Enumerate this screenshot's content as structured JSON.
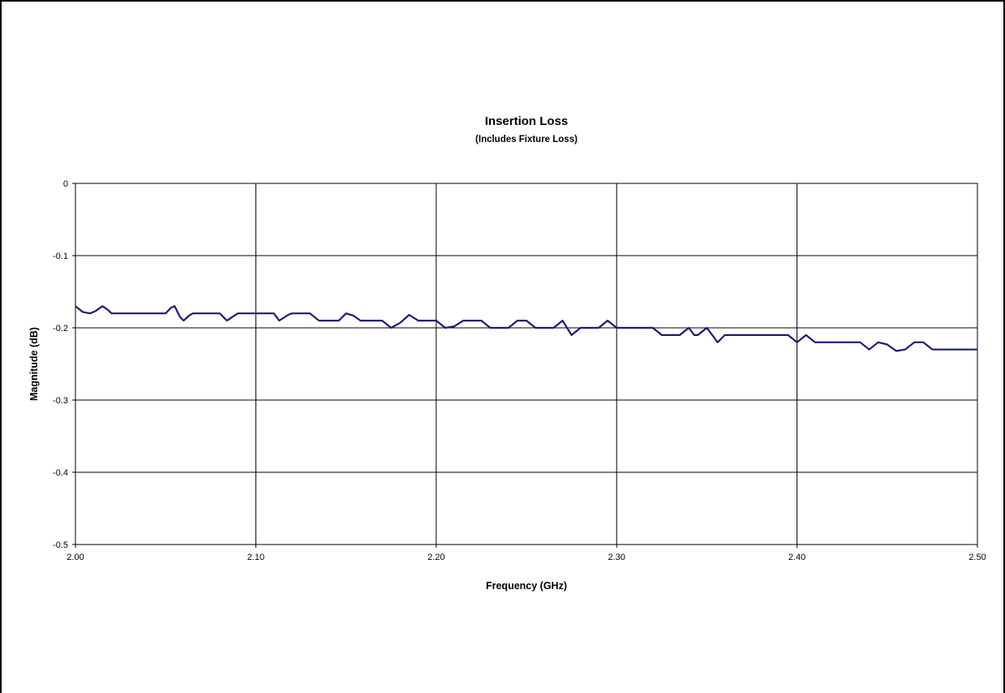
{
  "chart_data": {
    "type": "line",
    "title": "Insertion Loss",
    "subtitle": "(Includes Fixture Loss)",
    "xlabel": "Frequency (GHz)",
    "ylabel": "Magnitude (dB)",
    "xlim": [
      2.0,
      2.5
    ],
    "ylim": [
      -0.5,
      0
    ],
    "x_ticks": [
      "2.00",
      "2.10",
      "2.20",
      "2.30",
      "2.40",
      "2.50"
    ],
    "y_ticks": [
      "0",
      "-0.1",
      "-0.2",
      "-0.3",
      "-0.4",
      "-0.5"
    ],
    "grid": true,
    "legend": "none",
    "series": [
      {
        "color": "#1a1a7a",
        "x": [
          2.0,
          2.004,
          2.008,
          2.011,
          2.015,
          2.018,
          2.02,
          2.025,
          2.03,
          2.04,
          2.05,
          2.053,
          2.055,
          2.058,
          2.06,
          2.063,
          2.065,
          2.07,
          2.08,
          2.084,
          2.087,
          2.09,
          2.095,
          2.1,
          2.11,
          2.113,
          2.118,
          2.12,
          2.13,
          2.135,
          2.14,
          2.146,
          2.15,
          2.154,
          2.158,
          2.165,
          2.17,
          2.175,
          2.18,
          2.185,
          2.19,
          2.195,
          2.2,
          2.205,
          2.21,
          2.215,
          2.22,
          2.225,
          2.23,
          2.235,
          2.24,
          2.245,
          2.25,
          2.255,
          2.26,
          2.265,
          2.27,
          2.275,
          2.28,
          2.285,
          2.29,
          2.295,
          2.3,
          2.31,
          2.32,
          2.325,
          2.33,
          2.335,
          2.34,
          2.343,
          2.345,
          2.35,
          2.353,
          2.356,
          2.36,
          2.365,
          2.37,
          2.38,
          2.39,
          2.395,
          2.4,
          2.405,
          2.41,
          2.42,
          2.43,
          2.435,
          2.44,
          2.445,
          2.45,
          2.455,
          2.46,
          2.465,
          2.47,
          2.475,
          2.48,
          2.49,
          2.5
        ],
        "y": [
          -0.17,
          -0.178,
          -0.18,
          -0.177,
          -0.17,
          -0.175,
          -0.18,
          -0.18,
          -0.18,
          -0.18,
          -0.18,
          -0.172,
          -0.17,
          -0.185,
          -0.19,
          -0.183,
          -0.18,
          -0.18,
          -0.18,
          -0.19,
          -0.185,
          -0.18,
          -0.18,
          -0.18,
          -0.18,
          -0.19,
          -0.182,
          -0.18,
          -0.18,
          -0.19,
          -0.19,
          -0.19,
          -0.18,
          -0.183,
          -0.19,
          -0.19,
          -0.19,
          -0.2,
          -0.193,
          -0.182,
          -0.19,
          -0.19,
          -0.19,
          -0.2,
          -0.198,
          -0.19,
          -0.19,
          -0.19,
          -0.2,
          -0.2,
          -0.2,
          -0.19,
          -0.19,
          -0.2,
          -0.2,
          -0.2,
          -0.19,
          -0.21,
          -0.2,
          -0.2,
          -0.2,
          -0.19,
          -0.2,
          -0.2,
          -0.2,
          -0.21,
          -0.21,
          -0.21,
          -0.2,
          -0.21,
          -0.21,
          -0.2,
          -0.21,
          -0.22,
          -0.21,
          -0.21,
          -0.21,
          -0.21,
          -0.21,
          -0.21,
          -0.22,
          -0.21,
          -0.22,
          -0.22,
          -0.22,
          -0.22,
          -0.23,
          -0.22,
          -0.223,
          -0.232,
          -0.23,
          -0.22,
          -0.22,
          -0.23,
          -0.23,
          -0.23,
          -0.23
        ]
      }
    ]
  },
  "colors": {
    "line": "#1a1a7a",
    "grid": "#000000",
    "background": "#ffffff"
  }
}
